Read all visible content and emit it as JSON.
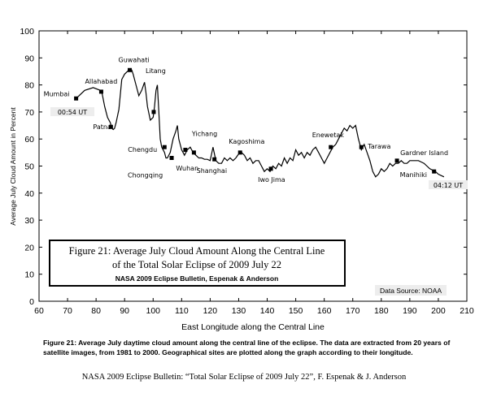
{
  "chart_data": {
    "type": "line",
    "xlabel": "East Longitude along the Central Line",
    "ylabel": "Average July Cloud Amount in Percent",
    "xlim": [
      60,
      210
    ],
    "ylim": [
      0,
      100
    ],
    "xticks": [
      60,
      70,
      80,
      90,
      100,
      110,
      120,
      130,
      140,
      150,
      160,
      170,
      180,
      190,
      200,
      210
    ],
    "yticks": [
      0,
      10,
      20,
      30,
      40,
      50,
      60,
      70,
      80,
      90,
      100
    ],
    "grid": false,
    "series": [
      {
        "x": [
          73,
          76,
          79,
          81.5,
          82,
          83,
          84,
          85,
          85.5,
          86,
          86.5,
          87,
          88,
          89,
          90,
          91,
          92,
          92.5,
          93,
          94,
          95,
          96,
          97,
          97.5,
          98,
          99,
          100,
          100.5,
          101,
          101.5,
          102,
          102.5,
          103,
          104,
          104.5,
          105,
          106,
          107,
          108,
          108.5,
          109,
          110,
          110.5,
          111,
          112,
          113,
          114,
          115,
          116,
          117,
          118,
          119,
          120,
          121,
          122,
          123,
          124,
          125,
          126,
          127,
          128,
          129,
          130,
          131,
          132,
          133,
          134,
          135,
          136,
          137,
          138,
          139,
          140,
          141,
          142,
          143,
          144,
          145,
          146,
          147,
          148,
          149,
          150,
          151,
          152,
          153,
          154,
          155,
          156,
          157,
          158,
          159,
          160,
          161,
          162,
          163,
          164,
          165,
          166,
          167,
          168,
          169,
          170,
          171,
          172,
          173,
          174,
          175,
          176,
          177,
          178,
          179,
          180,
          181,
          182,
          183,
          184,
          185,
          186,
          187,
          188,
          189,
          190,
          191,
          192,
          193,
          194,
          195,
          196,
          197,
          198,
          199,
          200,
          201,
          202
        ],
        "y": [
          75,
          78,
          79,
          78,
          77.5,
          72,
          68,
          66,
          64,
          63.5,
          64,
          66,
          71,
          82,
          84,
          85,
          86,
          85.5,
          84,
          80,
          76,
          78,
          81,
          77,
          72,
          67,
          68,
          72,
          78,
          80,
          70,
          60,
          57,
          55,
          53,
          53,
          55,
          60,
          63,
          65,
          60,
          56,
          55,
          54,
          56,
          57,
          55,
          54,
          53,
          53,
          52.5,
          52.5,
          52,
          57,
          52,
          51,
          51,
          53,
          52,
          53,
          52,
          53,
          54.5,
          55,
          54,
          52,
          53,
          51,
          52,
          52,
          50,
          48,
          49,
          48,
          50,
          49,
          51,
          50,
          53,
          51,
          53,
          52,
          56,
          54,
          55,
          53,
          55,
          54,
          56,
          57,
          55,
          53,
          51,
          53,
          55,
          57,
          58,
          60,
          62,
          64,
          63,
          65,
          64,
          65,
          60,
          56,
          58,
          55,
          52,
          48,
          46,
          47,
          49,
          48,
          49,
          51,
          50,
          51,
          51,
          52,
          51,
          51,
          52,
          52,
          52,
          52,
          51.5,
          51,
          50,
          49,
          48.5,
          48,
          47,
          46.5,
          46
        ]
      }
    ],
    "sites": [
      {
        "name": "Mumbai",
        "x": 73,
        "y": 75
      },
      {
        "name": "Allahabad",
        "x": 81.8,
        "y": 77.5
      },
      {
        "name": "Patna",
        "x": 85.2,
        "y": 64.5
      },
      {
        "name": "Guwahati",
        "x": 91.8,
        "y": 85.5
      },
      {
        "name": "Litang",
        "x": 100.2,
        "y": 70
      },
      {
        "name": "Chengdu",
        "x": 104,
        "y": 57
      },
      {
        "name": "Chongqing",
        "x": 106.5,
        "y": 53
      },
      {
        "name": "Wuhan",
        "x": 114.3,
        "y": 55
      },
      {
        "name": "Yichang",
        "x": 111.3,
        "y": 56
      },
      {
        "name": "Shanghai",
        "x": 121.5,
        "y": 52.5
      },
      {
        "name": "Kagoshima",
        "x": 130.5,
        "y": 55
      },
      {
        "name": "Iwo Jima",
        "x": 141.3,
        "y": 49
      },
      {
        "name": "Enewetak",
        "x": 162.3,
        "y": 57
      },
      {
        "name": "Tarawa",
        "x": 173,
        "y": 57
      },
      {
        "name": "Gardner Island",
        "x": 185.5,
        "y": 52
      },
      {
        "name": "Manihiki",
        "x": 198.5,
        "y": 48
      }
    ],
    "time_labels": [
      "00:54 UT",
      "04:12 UT"
    ],
    "inset_title_line1": "Figure 21: Average July Cloud Amount Along the Central Line",
    "inset_title_line2": "of the Total Solar Eclipse of 2009 July 22",
    "inset_subtitle": "NASA 2009 Eclipse Bulletin, Espenak & Anderson",
    "data_source": "Data Source: NOAA"
  },
  "caption": "Figure 21: Average July daytime cloud amount along the central line of the eclipse. The data are extracted from 20 years of satellite images, from 1981 to 2000. Geographical sites are plotted along the graph according to their longitude.",
  "footer": "NASA 2009 Eclipse Bulletin: “Total Solar Eclipse of 2009 July 22”, F. Espenak & J. Anderson"
}
